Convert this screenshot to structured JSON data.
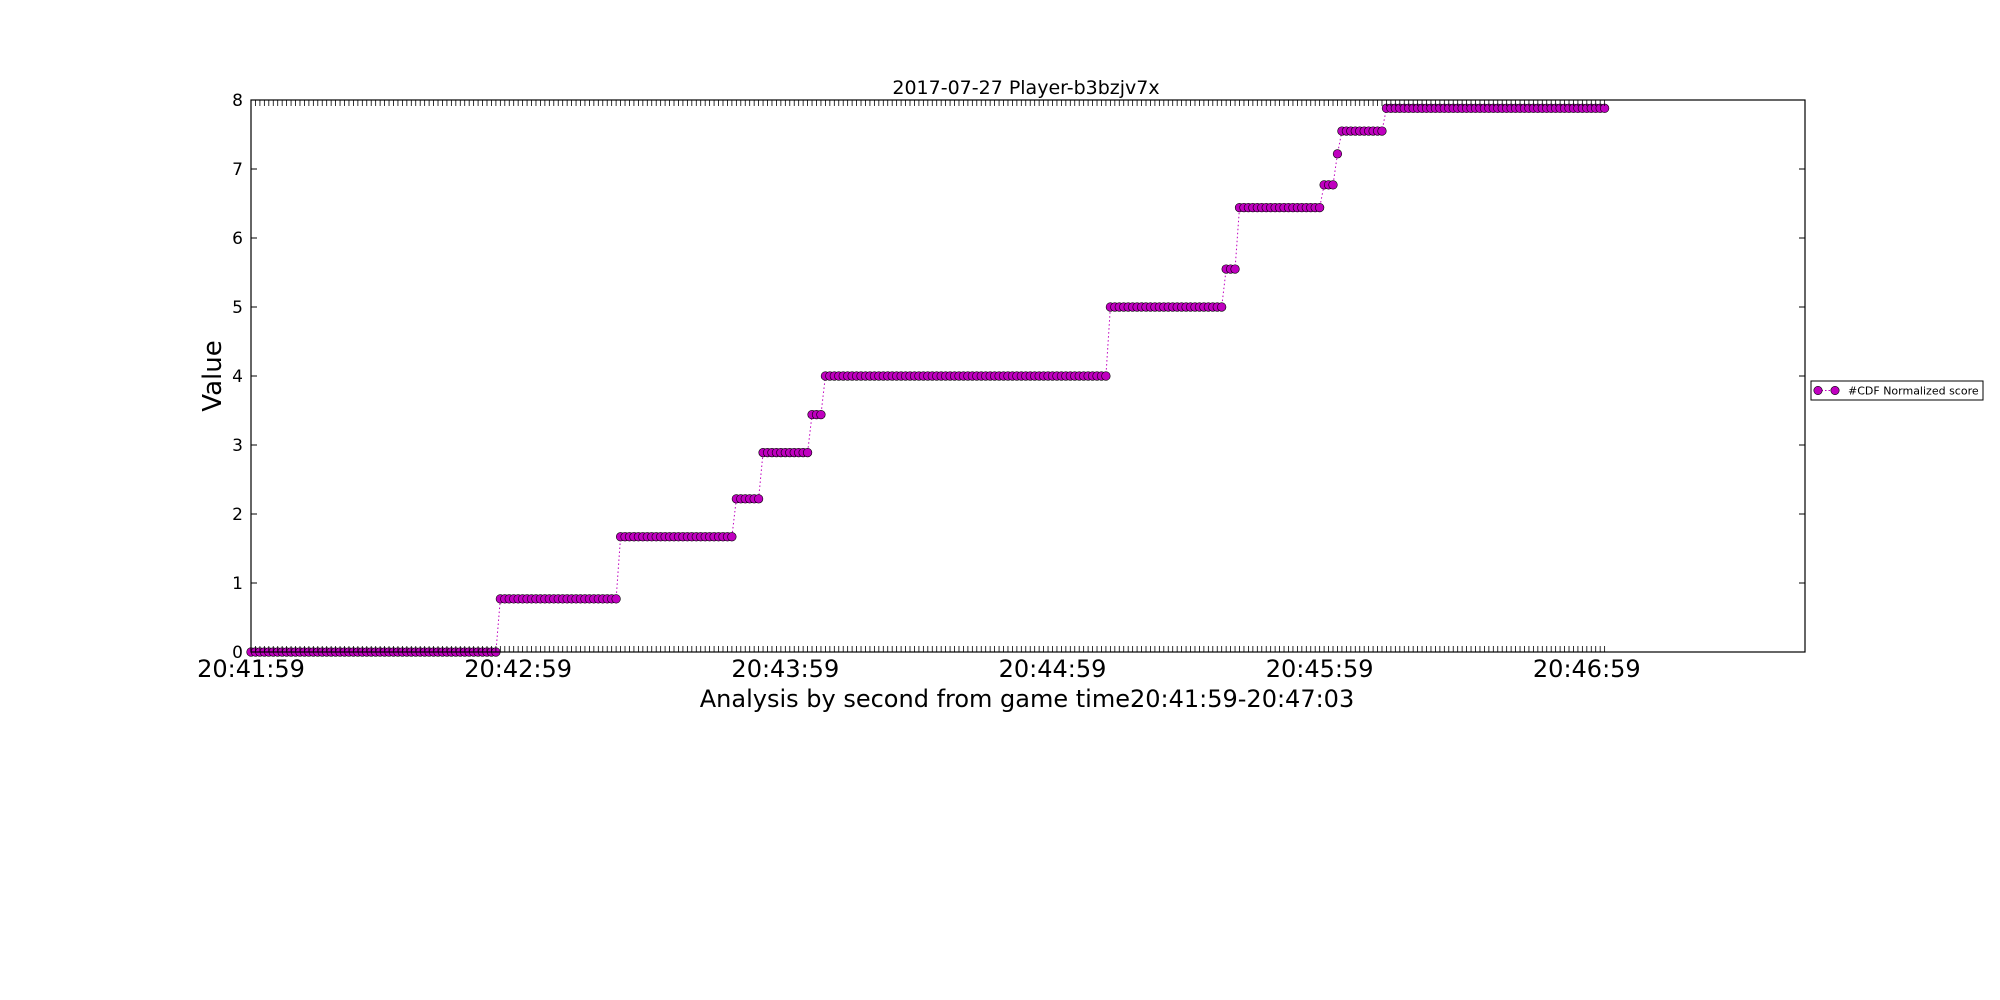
{
  "chart_data": {
    "type": "scatter",
    "title": "2017-07-27 Player-b3bzjv7x",
    "xlabel": "Analysis by second from game time20:41:59-20:47:03",
    "ylabel": "Value",
    "ylim": [
      0,
      8
    ],
    "xlim_seconds": [
      0,
      349
    ],
    "y_ticks": [
      "0",
      "1",
      "2",
      "3",
      "4",
      "5",
      "6",
      "7",
      "8"
    ],
    "x_ticks": [
      {
        "label": "20:41:59",
        "second": 0
      },
      {
        "label": "20:42:59",
        "second": 60
      },
      {
        "label": "20:43:59",
        "second": 120
      },
      {
        "label": "20:44:59",
        "second": 180
      },
      {
        "label": "20:45:59",
        "second": 240
      },
      {
        "label": "20:46:59",
        "second": 300
      }
    ],
    "grid": false,
    "legend_position": "right",
    "line_style": "dotted",
    "series": [
      {
        "name": "#CDF Normalized score",
        "color": "#bf00bf",
        "steps": [
          {
            "from": 0,
            "to": 56,
            "y": 0.0
          },
          {
            "from": 56,
            "to": 83,
            "y": 0.77
          },
          {
            "from": 83,
            "to": 109,
            "y": 1.67
          },
          {
            "from": 109,
            "to": 115,
            "y": 2.22
          },
          {
            "from": 115,
            "to": 126,
            "y": 2.89
          },
          {
            "from": 126,
            "to": 129,
            "y": 3.44
          },
          {
            "from": 129,
            "to": 193,
            "y": 4.0
          },
          {
            "from": 193,
            "to": 219,
            "y": 5.0
          },
          {
            "from": 219,
            "to": 222,
            "y": 5.55
          },
          {
            "from": 222,
            "to": 241,
            "y": 6.44
          },
          {
            "from": 241,
            "to": 244,
            "y": 6.77
          },
          {
            "from": 244,
            "to": 245,
            "y": 7.22
          },
          {
            "from": 245,
            "to": 255,
            "y": 7.55
          },
          {
            "from": 255,
            "to": 304,
            "y": 7.88
          }
        ]
      }
    ]
  }
}
